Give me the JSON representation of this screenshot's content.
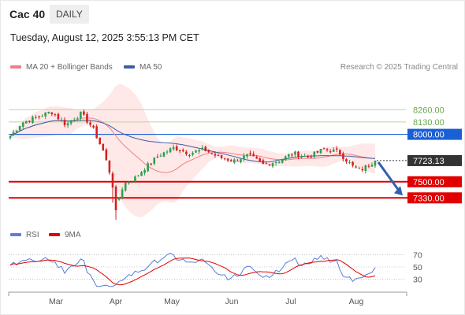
{
  "header": {
    "title": "Cac 40",
    "period": "DAILY",
    "timestamp": "Tuesday, August 12, 2025 3:55:13 PM CET"
  },
  "legend": {
    "ma20_label": "MA 20 + Bollinger Bands",
    "ma50_label": "MA 50",
    "copyright": "Research © 2025 Trading Central",
    "rsi_label": "RSI",
    "ma9_label": "9MA"
  },
  "colors": {
    "ma20": "#f08080",
    "ma50": "#3b5ea8",
    "band_fill": "#ffe0e0",
    "up_candle": "#2e9e4f",
    "down_candle": "#d42020",
    "level_green": "#6aa84f",
    "level_blue": "#1a5fd6",
    "level_red": "#e00000",
    "price_box": "#333333",
    "arrow": "#3060b0",
    "rsi": "#5b7fd6",
    "rsi_ma": "#e00000"
  },
  "chart_data": [
    {
      "type": "candlestick",
      "x_labels": [
        "Mar",
        "Apr",
        "May",
        "Jun",
        "Jul",
        "Aug"
      ],
      "ylim": [
        7050,
        8420
      ],
      "levels": [
        {
          "value": 8260,
          "label": "8260.00",
          "style": "green-thin"
        },
        {
          "value": 8130,
          "label": "8130.00",
          "style": "green-thin"
        },
        {
          "value": 8000,
          "label": "8000.00",
          "style": "blue-box"
        },
        {
          "value": 7500,
          "label": "7500.00",
          "style": "red-box"
        },
        {
          "value": 7330,
          "label": "7330.00",
          "style": "red-box"
        }
      ],
      "last_price": {
        "value": 7723.13,
        "label": "7723.13"
      },
      "forecast": {
        "direction": "down",
        "target": 7330
      },
      "series": [
        {
          "name": "MA 20 + Bollinger Bands",
          "kind": "ma20"
        },
        {
          "name": "MA 50",
          "kind": "ma50"
        }
      ]
    },
    {
      "type": "line",
      "ylim": [
        15,
        85
      ],
      "ticks": [
        70,
        50,
        30
      ],
      "tick_labels": [
        "70",
        "50",
        "30"
      ],
      "series": [
        {
          "name": "RSI",
          "kind": "rsi"
        },
        {
          "name": "9MA",
          "kind": "rsi_ma"
        }
      ]
    }
  ]
}
